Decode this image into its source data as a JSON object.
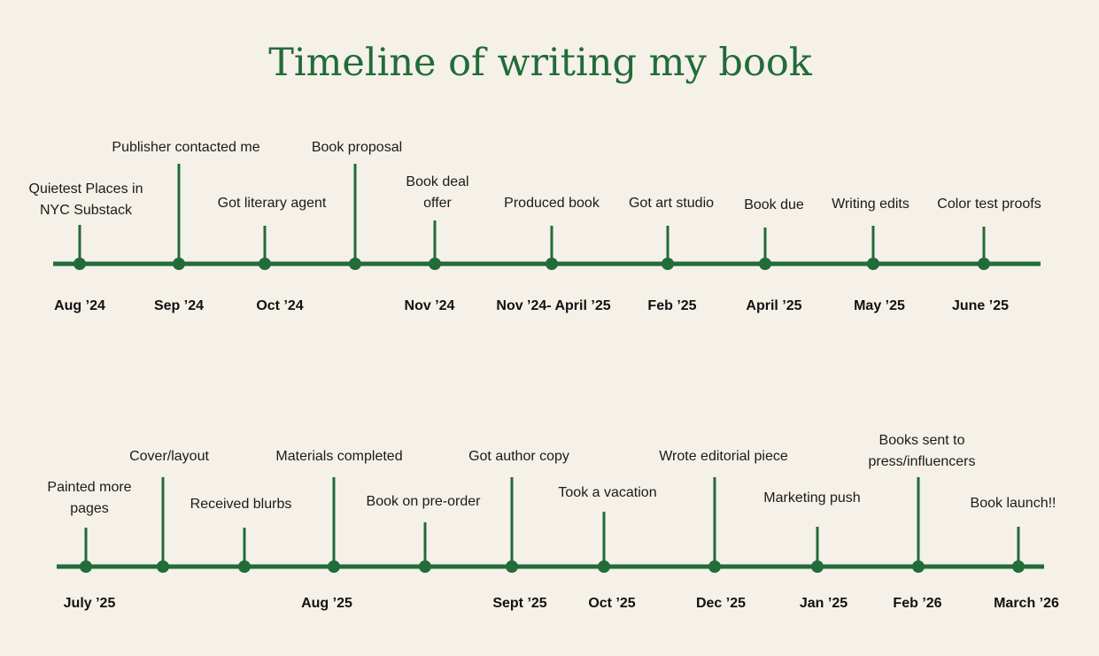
{
  "title": "Timeline of writing my book",
  "colors": {
    "line": "#226b3a",
    "background": "#f5f1e8",
    "title": "#226b3a"
  },
  "rows": [
    {
      "events": [
        {
          "label": "Quietest Places in\nNYC Substack",
          "date": "Aug ’24"
        },
        {
          "label": "Publisher contacted me",
          "date": "Sep ’24"
        },
        {
          "label": "Got literary agent",
          "date": "Oct ’24"
        },
        {
          "label": "Book proposal",
          "date": ""
        },
        {
          "label": "Book deal\noffer",
          "date": "Nov ’24"
        },
        {
          "label": "Produced book",
          "date": "Nov ’24- April ’25"
        },
        {
          "label": "Got art studio",
          "date": "Feb ’25"
        },
        {
          "label": "Book due",
          "date": "April ’25"
        },
        {
          "label": "Writing edits",
          "date": "May ’25"
        },
        {
          "label": "Color test proofs",
          "date": "June ’25"
        }
      ]
    },
    {
      "events": [
        {
          "label": "Painted more\npages",
          "date": "July ’25"
        },
        {
          "label": "Cover/layout",
          "date": ""
        },
        {
          "label": "Received blurbs",
          "date": ""
        },
        {
          "label": "Materials completed",
          "date": "Aug ’25"
        },
        {
          "label": "Book on pre-order",
          "date": ""
        },
        {
          "label": "Got author copy",
          "date": "Sept ’25"
        },
        {
          "label": "Took a vacation",
          "date": "Oct ’25"
        },
        {
          "label": "Wrote editorial piece",
          "date": "Dec ’25"
        },
        {
          "label": "Marketing push",
          "date": "Jan ’25"
        },
        {
          "label": "Books sent to\npress/influencers",
          "date": "Feb ’26"
        },
        {
          "label": "Book launch!!",
          "date": "March ’26"
        }
      ]
    }
  ]
}
